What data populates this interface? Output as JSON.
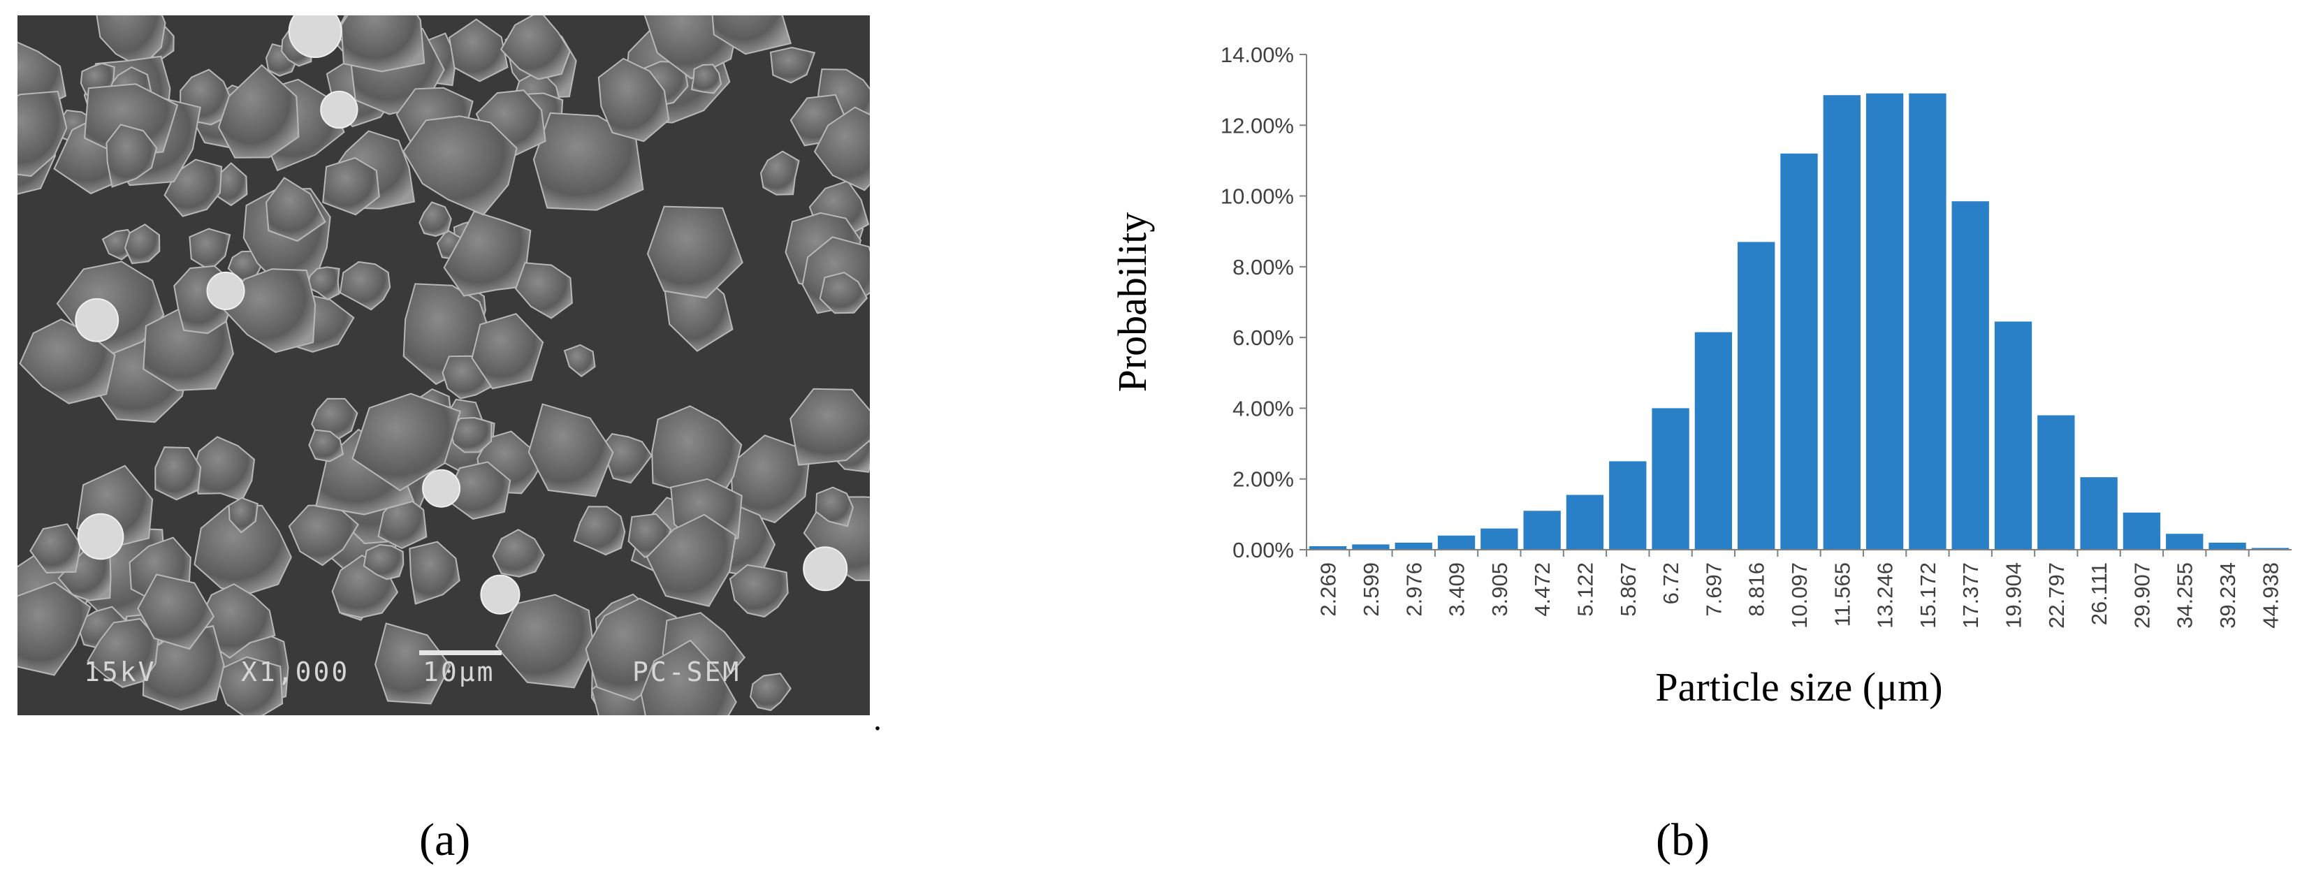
{
  "panel_a": {
    "label": "(a)",
    "sem_info": {
      "voltage": "15kV",
      "magnification": "X1,000",
      "scale": "10μm",
      "instrument": "PC-SEM"
    },
    "trailing_dot": "."
  },
  "panel_b": {
    "label": "(b)"
  },
  "chart_data": {
    "type": "bar",
    "title": "",
    "xlabel": "Particle size (μm)",
    "ylabel": "Probability",
    "ylim": [
      0,
      0.14
    ],
    "y_ticks": [
      "0.00%",
      "2.00%",
      "4.00%",
      "6.00%",
      "8.00%",
      "10.00%",
      "12.00%",
      "14.00%"
    ],
    "grid": false,
    "legend": "none",
    "bar_color": "#2a80c6",
    "categories": [
      "2.269",
      "2.599",
      "2.976",
      "3.409",
      "3.905",
      "4.472",
      "5.122",
      "5.867",
      "6.72",
      "7.697",
      "8.816",
      "10.097",
      "11.565",
      "13.246",
      "15.172",
      "17.377",
      "19.904",
      "22.797",
      "26.111",
      "29.907",
      "34.255",
      "39.234",
      "44.938"
    ],
    "values": [
      0.001,
      0.0015,
      0.002,
      0.004,
      0.006,
      0.011,
      0.0155,
      0.025,
      0.04,
      0.0615,
      0.087,
      0.112,
      0.1285,
      0.129,
      0.129,
      0.0985,
      0.0645,
      0.038,
      0.0205,
      0.0105,
      0.0045,
      0.002,
      0.0005
    ]
  }
}
